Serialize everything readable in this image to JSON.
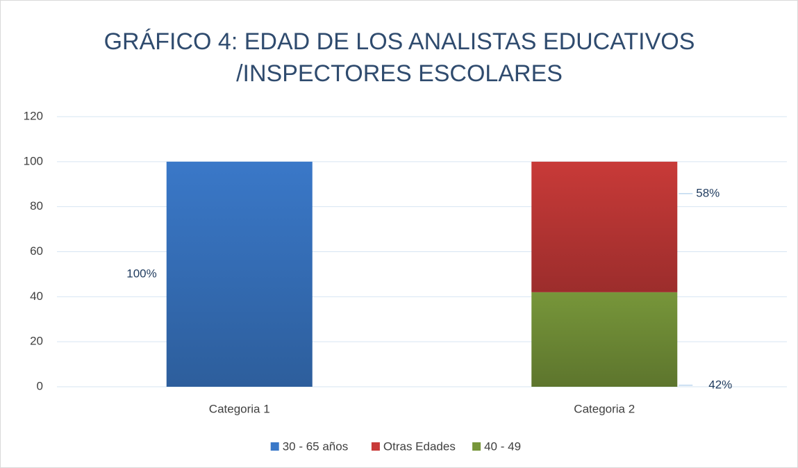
{
  "chart_data": {
    "type": "stacked_bar",
    "title": [
      "GRÁFICO 4: EDAD DE LOS ANALISTAS EDUCATIVOS",
      "/INSPECTORES ESCOLARES"
    ],
    "categories": [
      "Categoria 1",
      "Categoria 2"
    ],
    "series": [
      {
        "name": "30 - 65 años",
        "color": "#3a78c8",
        "values": [
          100,
          null
        ],
        "value_labels": [
          "100%",
          null
        ]
      },
      {
        "name": "Otras Edades",
        "color": "#c83a38",
        "values": [
          null,
          58
        ],
        "value_labels": [
          null,
          "58%"
        ]
      },
      {
        "name": "40 - 49",
        "color": "#77963a",
        "values": [
          null,
          42
        ],
        "value_labels": [
          null,
          "42%"
        ]
      }
    ],
    "ylim": [
      0,
      120
    ],
    "yticks": [
      0,
      20,
      40,
      60,
      80,
      100,
      120
    ],
    "grid": true,
    "legend": "bottom"
  }
}
